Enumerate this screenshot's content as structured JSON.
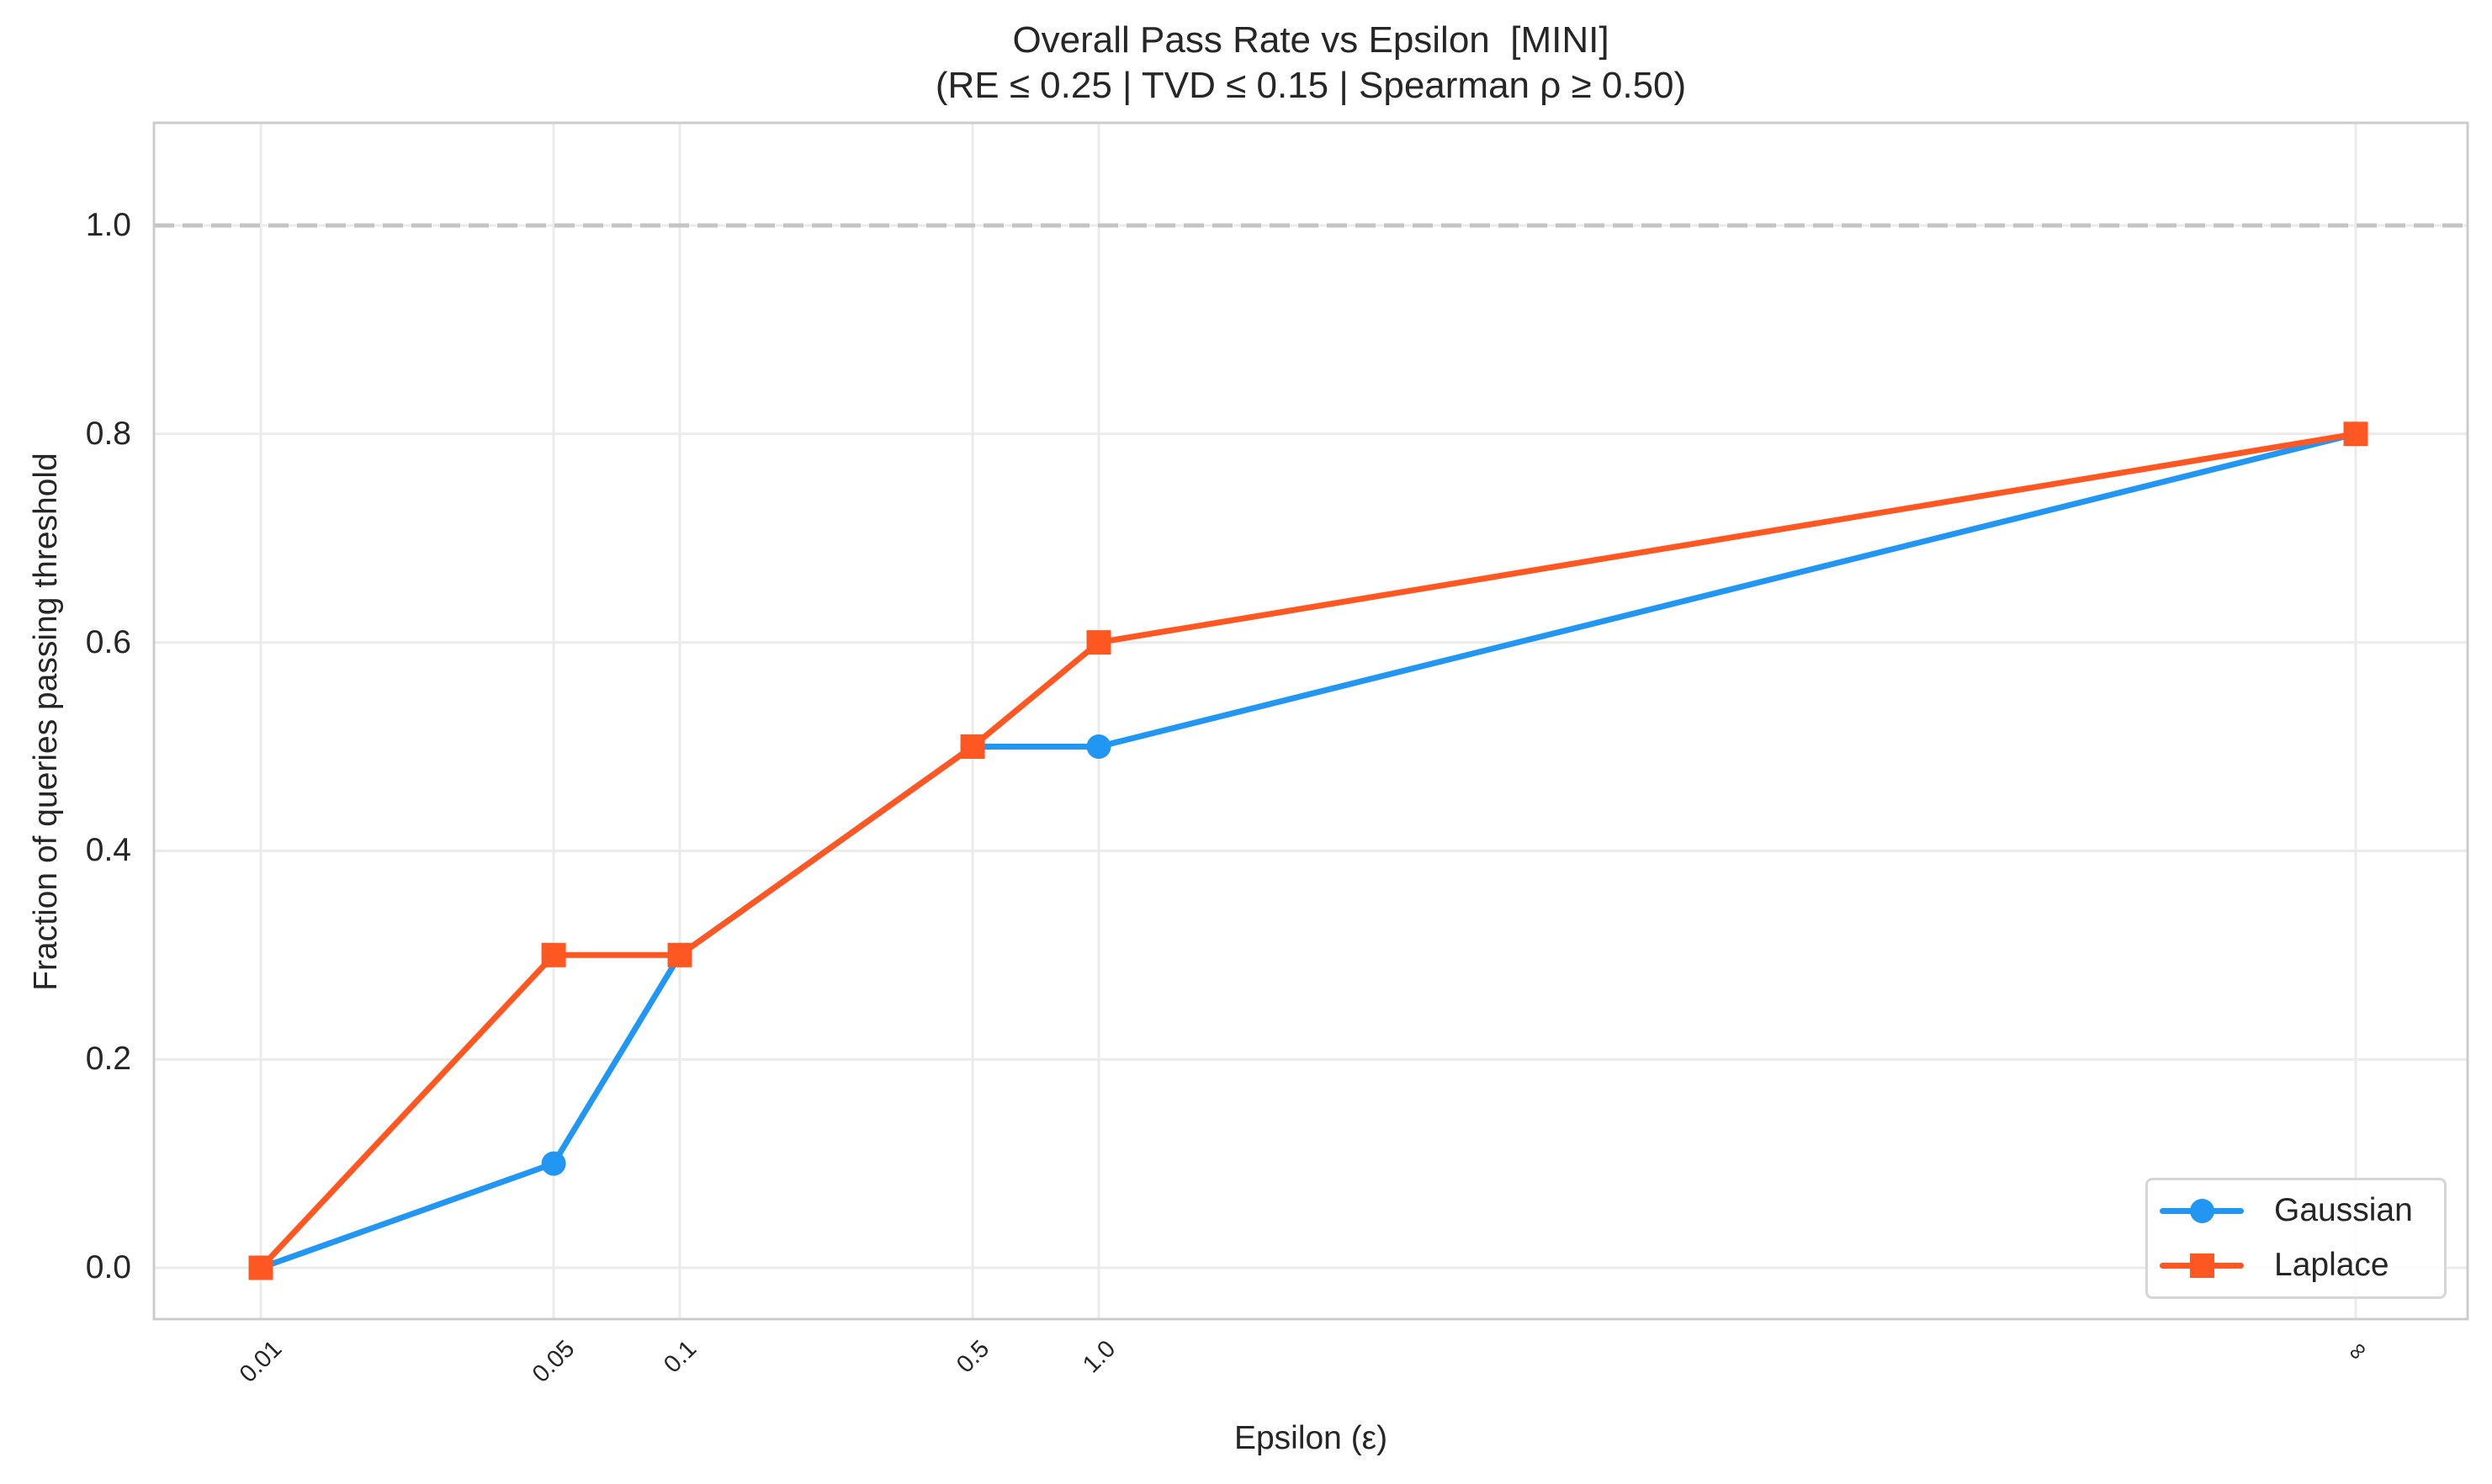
{
  "chart_data": {
    "type": "line",
    "title": "Overall Pass Rate vs Epsilon  [MINI]",
    "subtitle": "(RE ≤ 0.25 | TVD ≤ 0.15 | Spearman ρ ≥ 0.50)",
    "xlabel": "Epsilon (ε)",
    "ylabel": "Fraction of queries passing threshold",
    "x_scale": "log (∞ plotted at position of 1000)",
    "categories": [
      "0.01",
      "0.05",
      "0.1",
      "0.5",
      "1.0",
      "∞"
    ],
    "x_positions": [
      0.01,
      0.05,
      0.1,
      0.5,
      1.0,
      1000
    ],
    "series": [
      {
        "name": "Gaussian",
        "color": "#2196F3",
        "marker": "circle",
        "values": [
          0.0,
          0.1,
          0.3,
          0.5,
          0.5,
          0.8
        ]
      },
      {
        "name": "Laplace",
        "color": "#FF5722",
        "marker": "square",
        "values": [
          0.0,
          0.3,
          0.3,
          0.5,
          0.6,
          0.8
        ]
      }
    ],
    "yticks": [
      "0.0",
      "0.2",
      "0.4",
      "0.6",
      "0.8",
      "1.0"
    ],
    "ylim": [
      -0.05,
      1.1
    ],
    "reference_line": {
      "y": 1.0,
      "style": "dashed",
      "color": "#c0c0c0"
    },
    "grid": true,
    "legend_position": "lower right"
  },
  "legend": {
    "items": [
      {
        "label": "Gaussian",
        "color": "#2196F3"
      },
      {
        "label": "Laplace",
        "color": "#FF5722"
      }
    ]
  }
}
